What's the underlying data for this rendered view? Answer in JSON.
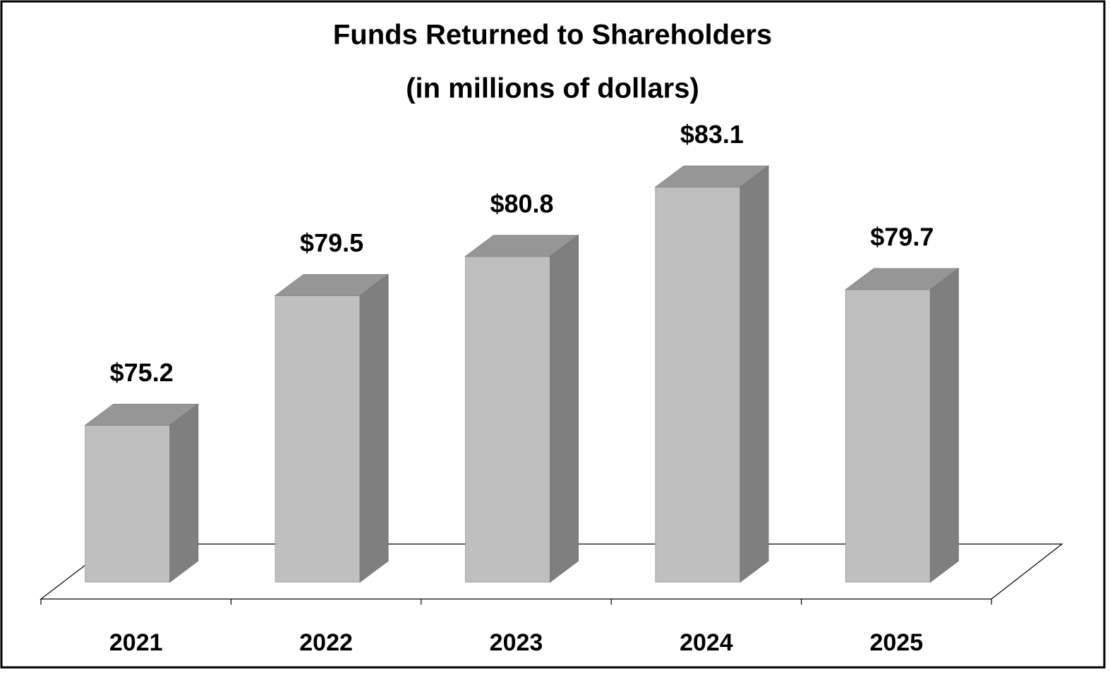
{
  "chart_data": {
    "type": "bar3d",
    "title": "Funds Returned to Shareholders",
    "subtitle": "(in millions of dollars)",
    "categories": [
      "2021",
      "2022",
      "2023",
      "2024",
      "2025"
    ],
    "values": [
      75.2,
      79.5,
      80.8,
      83.1,
      79.7
    ],
    "value_labels": [
      "$75.2",
      "$79.5",
      "$80.8",
      "$83.1",
      "$79.7"
    ],
    "ylim": [
      70,
      84
    ],
    "colors": {
      "front": "#bfbfbf",
      "top": "#969696",
      "side": "#7f7f7f"
    }
  }
}
